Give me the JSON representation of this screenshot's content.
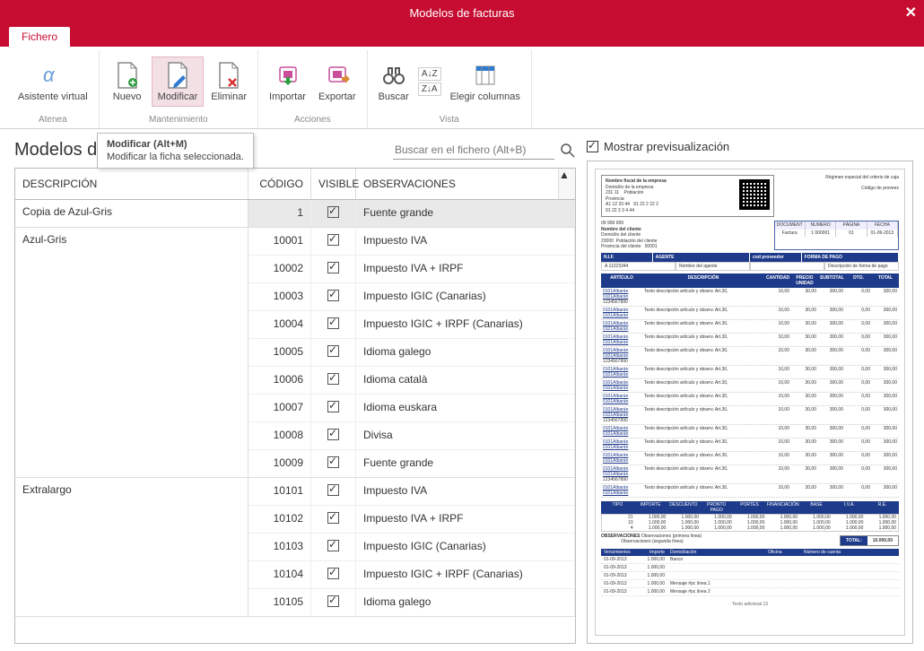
{
  "window": {
    "title": "Modelos de facturas"
  },
  "tabs": {
    "fichero": "Fichero"
  },
  "ribbon": {
    "asistente": {
      "label": "Asistente virtual",
      "group": "Atenea"
    },
    "nuevo": "Nuevo",
    "modificar": "Modificar",
    "eliminar": "Eliminar",
    "mantenimiento_group": "Mantenimiento",
    "importar": "Importar",
    "exportar": "Exportar",
    "acciones_group": "Acciones",
    "buscar": "Buscar",
    "elegir": "Elegir columnas",
    "vista_group": "Vista"
  },
  "tooltip": {
    "title": "Modificar (Alt+M)",
    "body": "Modificar la ficha seleccionada."
  },
  "left": {
    "title": "Modelos d",
    "search_placeholder": "Buscar en el fichero (Alt+B)",
    "columns": {
      "desc": "DESCRIPCIÓN",
      "code": "CÓDIGO",
      "visible": "VISIBLE",
      "obs": "OBSERVACIONES"
    },
    "sections": [
      {
        "desc": "Copia de Azul-Gris",
        "rows": [
          {
            "code": "1",
            "visible": true,
            "obs": "Fuente grande",
            "selected": true
          }
        ]
      },
      {
        "desc": "Azul-Gris",
        "rows": [
          {
            "code": "10001",
            "visible": true,
            "obs": "Impuesto IVA"
          },
          {
            "code": "10002",
            "visible": true,
            "obs": "Impuesto IVA + IRPF"
          },
          {
            "code": "10003",
            "visible": true,
            "obs": "Impuesto IGIC (Canarias)"
          },
          {
            "code": "10004",
            "visible": true,
            "obs": "Impuesto IGIC + IRPF (Canarias)"
          },
          {
            "code": "10005",
            "visible": true,
            "obs": "Idioma galego"
          },
          {
            "code": "10006",
            "visible": true,
            "obs": "Idioma català"
          },
          {
            "code": "10007",
            "visible": true,
            "obs": "Idioma euskara"
          },
          {
            "code": "10008",
            "visible": true,
            "obs": "Divisa"
          },
          {
            "code": "10009",
            "visible": true,
            "obs": "Fuente grande"
          }
        ]
      },
      {
        "desc": "Extralargo",
        "rows": [
          {
            "code": "10101",
            "visible": true,
            "obs": "Impuesto IVA"
          },
          {
            "code": "10102",
            "visible": true,
            "obs": "Impuesto IVA + IRPF"
          },
          {
            "code": "10103",
            "visible": true,
            "obs": "Impuesto IGIC (Canarias)"
          },
          {
            "code": "10104",
            "visible": true,
            "obs": "Impuesto IGIC + IRPF (Canarias)"
          },
          {
            "code": "10105",
            "visible": true,
            "obs": "Idioma galego"
          }
        ]
      }
    ]
  },
  "right": {
    "show_preview": "Mostrar previsualización",
    "invoice": {
      "company": {
        "name": "Nombre fiscal de la empresa",
        "dom": "Domicilio de la empresa",
        "cp": "231 11",
        "pob": "Población",
        "prov": "Provincia",
        "nif": "A1 12 33 44",
        "tel": "91 22 2 22 2",
        "tel2": "91 22 3 3 4 44"
      },
      "regimen": "Régimen especial del criterio de caja",
      "codprov": "Código de provees",
      "client": {
        "num": "09 999 999",
        "name": "Nombre del cliente",
        "dom": "Domicilio del cliente",
        "cp": "23000",
        "pob": "Población del cliente",
        "prov": "Provincia del cliente",
        "code": "00001"
      },
      "doc": {
        "h": [
          "DOCUMENT",
          "NUMERO",
          "PÁGINA",
          "FECHA"
        ],
        "r": [
          "Factura",
          "1     000001",
          "01",
          "01-09-2013"
        ]
      },
      "agent_bar": [
        "N.I.F.",
        "AGENTE",
        "cod proveedor",
        "FORMA DE PAGO"
      ],
      "agent_sub": [
        "A 11223344",
        "Nombre del agente",
        "",
        "Descripción de forma de pago"
      ],
      "table_head": [
        "ARTÍCULO",
        "DESCRIPCIÓN",
        "CANTIDAD",
        "PRECIO UNIDAD",
        "SUBTOTAL",
        "DTO.",
        "TOTAL"
      ],
      "line_sample": {
        "art": "0101Albarán",
        "art2": "0101Albarán",
        "ref": "1234567890",
        "desc": "Texto descripción artículo y observ. Art.30,",
        "qty": "10,00",
        "pu": "30,00",
        "sub": "300,00",
        "dto": "0,00",
        "tot": "300,00"
      },
      "line_count": 14,
      "extra_sub": "100,30,00",
      "sum_head": [
        "TIPO",
        "IMPORTE",
        "DESCUENTO",
        "PRONTO PAGO",
        "PORTES",
        "FINANCIACIÓN",
        "BASE",
        "I.V.A.",
        "R.E."
      ],
      "sum_rows": [
        [
          "21",
          "1.000,00",
          "1.000,00",
          "1.000,00",
          "1.000,00",
          "1.000,00",
          "1.000,00",
          "1.000,00",
          "1.000,00"
        ],
        [
          "10",
          "1.000,00",
          "1.000,00",
          "1.000,00",
          "1.000,00",
          "1.000,00",
          "1.000,00",
          "1.000,00",
          "1.000,00"
        ],
        [
          "4",
          "1.000,00",
          "1.000,00",
          "1.000,00",
          "1.000,00",
          "1.000,00",
          "1.000,00",
          "1.000,00",
          "1.000,00"
        ]
      ],
      "obs_label": "OBSERVACIONES",
      "obs1": "Observaciones (primera línea)",
      "obs2": "Observaciones (segunda línea)",
      "total_label": "TOTAL:",
      "total_value": "10.000,00",
      "venc_head": [
        "Vencimientos",
        "Importe",
        "Domiciliación",
        "Oficina",
        "Número de cuenta"
      ],
      "venc_rows": [
        [
          "01-09-2013",
          "1.000,00",
          "Banco",
          "",
          ""
        ],
        [
          "01-09-2013",
          "1.000,00",
          "",
          "",
          ""
        ],
        [
          "01-09-2013",
          "1.000,00",
          "",
          "",
          ""
        ],
        [
          "01-09-2013",
          "1.000,00",
          "Mensaje #pc línea 1",
          "",
          ""
        ],
        [
          "01-09-2013",
          "1.000,00",
          "Mensaje #pc línea 2",
          "",
          ""
        ]
      ],
      "footer": "Texto adicional 13"
    }
  },
  "colors": {
    "brand": "#c60c30",
    "navy": "#1e3a8a",
    "sel_bg": "#f3e0e5",
    "sel_border": "#e5b6c2"
  }
}
